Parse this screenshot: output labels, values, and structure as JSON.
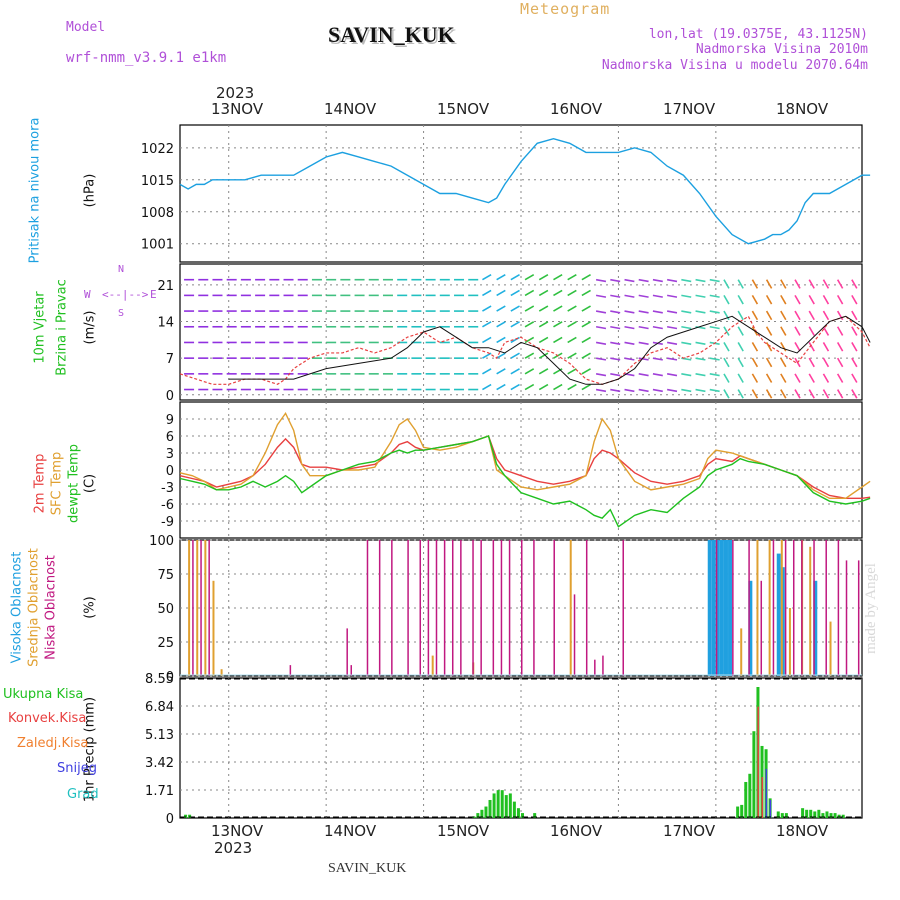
{
  "header": {
    "model_label": "Model",
    "model_name": "wrf-nmm_v3.9.1 e1km",
    "title": "SAVIN_KUK",
    "meteogram": "Meteogram",
    "coords": "lon,lat (19.0375E, 43.1125N)",
    "elevation": "Nadmorska Visina 2010m",
    "elevation_model": "Nadmorska Visina u modelu 2070.64m"
  },
  "footer": {
    "station": "SAVIN_KUK",
    "watermark": "made by Angel"
  },
  "dates": {
    "year": "2023",
    "days": [
      "13NOV",
      "14NOV",
      "15NOV",
      "16NOV",
      "17NOV",
      "18NOV"
    ]
  },
  "colors": {
    "pressure": "#1ca0e0",
    "temp2m": "#e84040",
    "sfc": "#e0a030",
    "dewpt": "#20c020",
    "high": "#20a0e0",
    "mid": "#e0a030",
    "low": "#c01880",
    "total": "#20c020",
    "convective": "#e84040",
    "frozen": "#f08030",
    "snow": "#4040e0",
    "graupel": "#20c0c0"
  },
  "panels": {
    "pressure": {
      "labels": [
        "Pritisak na nivou mora",
        "(hPa)"
      ]
    },
    "wind": {
      "labels": [
        "10m Vjetar",
        "Brzina i Pravac",
        "(m/s)"
      ],
      "compass": {
        "n": "N",
        "s": "S",
        "w": "W",
        "e": "E"
      }
    },
    "temp": {
      "labels": [
        "2m Temp",
        "SFC Temp",
        "dewpt Temp",
        "(C)"
      ]
    },
    "cloud": {
      "labels": [
        "Visoka Oblacnost",
        "Srednja Oblacnost",
        "Niska Oblacnost",
        "(%)"
      ]
    },
    "precip": {
      "ylabel": "1hr Precip (mm)",
      "legend": [
        "Ukupna Kisa",
        "Konvek.Kisa",
        "Zaledj.Kisa",
        "Snijeg",
        "Grad"
      ]
    }
  },
  "chart_data": [
    {
      "type": "line",
      "title": "Pritisak na nivou mora",
      "ylabel": "(hPa)",
      "ylim": [
        997,
        1027
      ],
      "yticks": [
        1001,
        1008,
        1015,
        1022
      ],
      "x_unit": "hours from 2023-11-13 00:00",
      "series": [
        {
          "name": "Pritisak na nivou mora",
          "x": [
            -12,
            -10,
            -8,
            -6,
            -4,
            -2,
            0,
            4,
            8,
            12,
            16,
            20,
            24,
            28,
            32,
            36,
            40,
            44,
            48,
            52,
            56,
            60,
            64,
            66,
            68,
            72,
            76,
            80,
            84,
            88,
            92,
            96,
            100,
            104,
            108,
            112,
            116,
            120,
            124,
            128,
            132,
            134,
            136,
            138,
            140,
            142,
            144,
            148,
            152,
            156,
            158
          ],
          "y": [
            1014,
            1013,
            1014,
            1014,
            1015,
            1015,
            1015,
            1015,
            1016,
            1016,
            1016,
            1018,
            1020,
            1021,
            1020,
            1019,
            1018,
            1016,
            1014,
            1012,
            1012,
            1011,
            1010,
            1011,
            1014,
            1019,
            1023,
            1024,
            1023,
            1021,
            1021,
            1021,
            1022,
            1021,
            1018,
            1016,
            1012,
            1007,
            1003,
            1001,
            1002,
            1003,
            1003,
            1004,
            1006,
            1010,
            1012,
            1012,
            1014,
            1016,
            1016
          ]
        }
      ]
    },
    {
      "type": "line",
      "title": "10m Vjetar",
      "ylabel": "(m/s)",
      "ylim": [
        -1,
        25
      ],
      "yticks": [
        0,
        7,
        14,
        21
      ],
      "series": [
        {
          "name": "Brzina i Pravac",
          "x": [
            -12,
            -8,
            -4,
            0,
            4,
            8,
            12,
            14,
            16,
            20,
            24,
            28,
            32,
            36,
            40,
            44,
            48,
            52,
            56,
            60,
            64,
            66,
            68,
            72,
            76,
            80,
            84,
            88,
            92,
            96,
            100,
            104,
            108,
            112,
            116,
            120,
            124,
            128,
            130,
            132,
            136,
            140,
            144,
            148,
            152,
            156,
            158
          ],
          "y": [
            4,
            3,
            2,
            2,
            3,
            3,
            2,
            3,
            5,
            7,
            8,
            8,
            9,
            8,
            9,
            11,
            12,
            10,
            11,
            9,
            8,
            7,
            10,
            11,
            9,
            8,
            6,
            3,
            2,
            3,
            6,
            8,
            9,
            7,
            8,
            10,
            13,
            15,
            12,
            10,
            8,
            6,
            10,
            14,
            15,
            12,
            9
          ]
        },
        {
          "name": "",
          "x": [
            0,
            8,
            16,
            24,
            32,
            40,
            44,
            48,
            52,
            56,
            60,
            64,
            68,
            72,
            76,
            80,
            84,
            88,
            92,
            96,
            100,
            104,
            108,
            112,
            116,
            120,
            124,
            128,
            132,
            136,
            140,
            144,
            148,
            152,
            156,
            158
          ],
          "y": [
            3,
            3,
            3,
            5,
            6,
            7,
            9,
            12,
            13,
            11,
            9,
            9,
            8,
            10,
            9,
            6,
            3,
            2,
            2,
            3,
            5,
            9,
            11,
            12,
            13,
            14,
            15,
            13,
            11,
            9,
            8,
            11,
            14,
            15,
            13,
            10
          ]
        }
      ]
    },
    {
      "type": "line",
      "title": "2m Temp",
      "ylabel": "(C)",
      "ylim": [
        -12,
        12
      ],
      "yticks": [
        -9,
        -6,
        -3,
        0,
        3,
        6,
        9
      ],
      "series": [
        {
          "name": "2m Temp",
          "x": [
            -12,
            -9,
            -6,
            -3,
            0,
            3,
            6,
            9,
            12,
            14,
            16,
            18,
            20,
            24,
            28,
            32,
            36,
            40,
            42,
            44,
            46,
            48,
            52,
            56,
            60,
            64,
            66,
            68,
            72,
            76,
            80,
            84,
            88,
            90,
            92,
            94,
            96,
            100,
            104,
            108,
            112,
            116,
            118,
            120,
            124,
            126,
            128,
            132,
            136,
            140,
            144,
            148,
            152,
            156,
            158
          ],
          "y": [
            -1,
            -1.5,
            -2,
            -3,
            -2.5,
            -2,
            -1,
            1,
            4,
            5.5,
            4,
            1,
            0.5,
            0.5,
            0,
            0.5,
            1,
            3,
            4.5,
            5,
            4,
            3.5,
            4,
            4.5,
            5,
            6,
            2,
            0,
            -1,
            -2,
            -2.5,
            -2,
            -1,
            2,
            3.5,
            3,
            2,
            -0.5,
            -2,
            -2.5,
            -2,
            -1,
            1,
            2,
            1.5,
            2.5,
            2,
            1,
            0,
            -1,
            -3,
            -4.5,
            -5,
            -5,
            -4.8
          ]
        },
        {
          "name": "SFC Temp",
          "x": [
            -12,
            -9,
            -6,
            -3,
            0,
            3,
            6,
            9,
            12,
            14,
            16,
            18,
            20,
            24,
            28,
            32,
            36,
            40,
            42,
            44,
            46,
            48,
            52,
            56,
            60,
            64,
            66,
            68,
            72,
            76,
            80,
            84,
            88,
            90,
            92,
            94,
            96,
            100,
            104,
            108,
            112,
            116,
            118,
            120,
            124,
            126,
            128,
            132,
            136,
            140,
            144,
            148,
            152,
            156,
            158
          ],
          "y": [
            -0.5,
            -1,
            -2,
            -3.5,
            -3,
            -2.5,
            -1,
            3,
            8,
            10,
            7,
            1,
            -1,
            -1,
            0,
            0,
            0.5,
            5,
            8,
            9,
            7,
            4,
            3.5,
            4,
            5,
            6,
            0,
            -1,
            -3,
            -3.5,
            -3,
            -2.5,
            -1,
            5,
            9,
            7,
            2,
            -2,
            -3.5,
            -3,
            -2.5,
            -1.5,
            2,
            3.5,
            3,
            2.5,
            2,
            1,
            0,
            -1,
            -3.5,
            -5,
            -5,
            -3,
            -2
          ]
        },
        {
          "name": "dewpt Temp",
          "x": [
            -12,
            -9,
            -6,
            -3,
            0,
            3,
            6,
            9,
            12,
            14,
            16,
            18,
            20,
            24,
            28,
            32,
            36,
            40,
            42,
            44,
            46,
            48,
            52,
            56,
            60,
            64,
            66,
            68,
            72,
            76,
            80,
            84,
            88,
            90,
            92,
            94,
            96,
            100,
            104,
            108,
            112,
            116,
            118,
            120,
            124,
            126,
            128,
            132,
            136,
            140,
            144,
            148,
            152,
            156,
            158
          ],
          "y": [
            -1.5,
            -2,
            -2.5,
            -3.5,
            -3.5,
            -3,
            -2,
            -3,
            -2,
            -1,
            -2,
            -4,
            -3,
            -1,
            0,
            1,
            1.5,
            3,
            3.5,
            3,
            3.5,
            3.5,
            4,
            4.5,
            5,
            6,
            1,
            -1,
            -4,
            -5,
            -6,
            -5.5,
            -7,
            -8,
            -8.5,
            -7,
            -10,
            -8,
            -7,
            -7.5,
            -5,
            -3,
            -1,
            0,
            1,
            2,
            1.5,
            1,
            0,
            -1,
            -4,
            -5.5,
            -6,
            -5.5,
            -5
          ]
        }
      ]
    },
    {
      "type": "bar",
      "title": "Oblacnost",
      "ylabel": "(%)",
      "ylim": [
        0,
        100
      ],
      "yticks": [
        0,
        25,
        50,
        75,
        100
      ],
      "series": [
        {
          "name": "Visoka Oblacnost",
          "x": [
            -12,
            118,
            119,
            120,
            121,
            122,
            123,
            128,
            135,
            136,
            144
          ],
          "values": [
            0,
            100,
            100,
            100,
            100,
            100,
            100,
            70,
            90,
            80,
            70
          ]
        },
        {
          "name": "Srednja Oblacnost",
          "x": [
            -10,
            -8,
            -6,
            -4,
            -2,
            50,
            60,
            84,
            126,
            130,
            133,
            136,
            138,
            141,
            143,
            148
          ],
          "values": [
            100,
            100,
            100,
            70,
            5,
            15,
            10,
            100,
            35,
            100,
            100,
            100,
            50,
            100,
            95,
            40
          ]
        },
        {
          "name": "Niska Oblacnost",
          "x": [
            -9,
            -7,
            -5,
            15,
            29,
            30,
            34,
            37,
            40,
            44,
            47,
            49,
            51,
            53,
            55,
            57,
            60,
            62,
            65,
            67,
            69,
            72,
            75,
            80,
            85,
            88,
            90,
            92,
            97,
            120,
            124,
            128,
            131,
            134,
            137,
            139,
            141,
            144,
            147,
            150,
            152,
            155
          ],
          "values": [
            100,
            100,
            100,
            8,
            35,
            8,
            100,
            100,
            100,
            100,
            100,
            100,
            100,
            100,
            100,
            100,
            100,
            100,
            100,
            100,
            100,
            100,
            100,
            100,
            60,
            100,
            12,
            15,
            100,
            100,
            100,
            100,
            70,
            100,
            100,
            100,
            100,
            100,
            100,
            100,
            85,
            85
          ]
        }
      ]
    },
    {
      "type": "bar",
      "title": "1hr Precip",
      "ylabel": "1hr Precip (mm)",
      "ylim": [
        0,
        8.55
      ],
      "yticks": [
        0,
        1.71,
        3.42,
        5.13,
        6.84,
        8.55
      ],
      "series": [
        {
          "name": "Ukupna Kisa",
          "x": [
            -11,
            -10,
            60,
            61,
            62,
            63,
            64,
            65,
            66,
            67,
            68,
            69,
            70,
            71,
            72,
            75,
            125,
            126,
            127,
            128,
            129,
            130,
            131,
            132,
            133,
            135,
            136,
            137,
            141,
            142,
            143,
            144,
            145,
            146,
            147,
            148,
            149,
            150,
            151
          ],
          "values": [
            0.2,
            0.2,
            0.1,
            0.3,
            0.5,
            0.7,
            1.1,
            1.5,
            1.7,
            1.7,
            1.4,
            1.5,
            1.0,
            0.6,
            0.3,
            0.3,
            0.7,
            0.8,
            2.2,
            2.7,
            5.3,
            8.0,
            4.4,
            4.2,
            1.2,
            0.4,
            0.3,
            0.3,
            0.6,
            0.5,
            0.5,
            0.4,
            0.5,
            0.3,
            0.4,
            0.3,
            0.3,
            0.2,
            0.2
          ]
        },
        {
          "name": "Konvek.Kisa",
          "x": [
            130,
            131
          ],
          "values": [
            6.8,
            2.5
          ]
        },
        {
          "name": "Zaledj.Kisa",
          "x": [],
          "values": []
        },
        {
          "name": "Snijeg",
          "x": [
            132,
            133
          ],
          "values": [
            3.0,
            1.1
          ]
        },
        {
          "name": "Grad",
          "x": [],
          "values": []
        }
      ]
    }
  ]
}
